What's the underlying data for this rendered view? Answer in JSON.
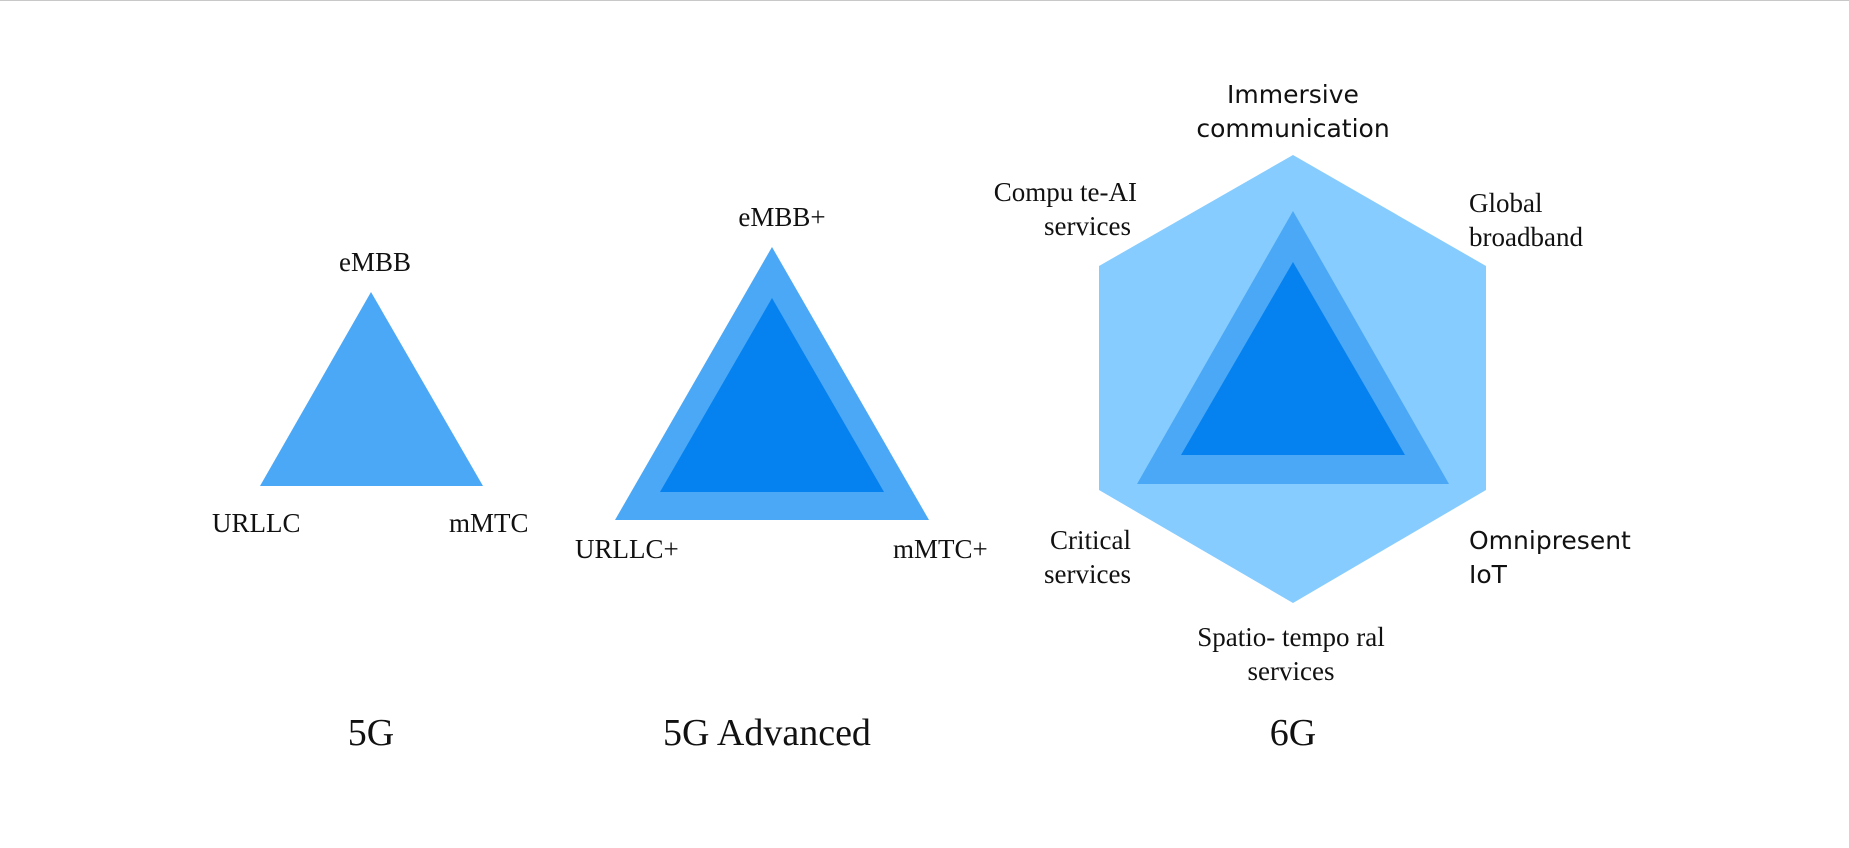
{
  "colors": {
    "light_blue": "#86CCFF",
    "mid_blue": "#4BA8F6",
    "dark_blue": "#0582F0",
    "text": "#111111"
  },
  "g5": {
    "caption": "5G",
    "labels": {
      "top": "eMBB",
      "left": "URLLC",
      "right": "mMTC"
    }
  },
  "g5a": {
    "caption": "5G Advanced",
    "labels": {
      "top": "eMBB+",
      "left": "URLLC+",
      "right": "mMTC+"
    }
  },
  "g6": {
    "caption": "6G",
    "labels": {
      "top": [
        "Immersive",
        "communication"
      ],
      "top_right": [
        "Global",
        "broadband"
      ],
      "bottom_right": [
        "Omnipresent",
        "IoT"
      ],
      "bottom": [
        "Spatio- tempo ral",
        "services"
      ],
      "bottom_left": [
        "Critical",
        "services"
      ],
      "top_left": [
        "Compu te-AI",
        "services"
      ]
    }
  }
}
